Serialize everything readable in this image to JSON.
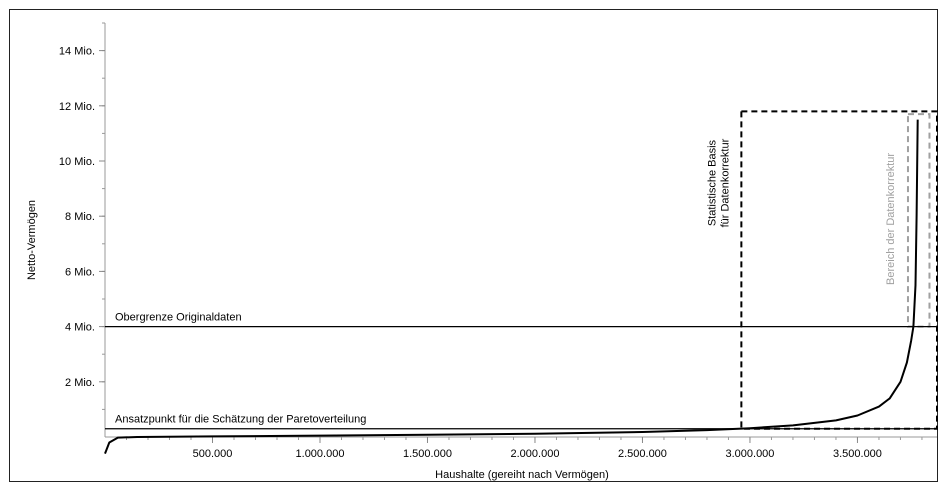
{
  "chart_data": {
    "type": "line",
    "title": "",
    "xlabel": "Haushalte (gereiht nach Vermögen)",
    "ylabel": "Netto-Vermögen",
    "xlim": [
      0,
      3870000
    ],
    "ylim": [
      0,
      15000000
    ],
    "x_ticks": [
      {
        "value": 500000,
        "label": "500.000"
      },
      {
        "value": 1000000,
        "label": "1.000.000"
      },
      {
        "value": 1500000,
        "label": "1.500.000"
      },
      {
        "value": 2000000,
        "label": "2.000.000"
      },
      {
        "value": 2500000,
        "label": "2.500.000"
      },
      {
        "value": 3000000,
        "label": "3.000.000"
      },
      {
        "value": 3500000,
        "label": "3.500.000"
      }
    ],
    "y_ticks": [
      {
        "value": 2000000,
        "label": "2 Mio."
      },
      {
        "value": 4000000,
        "label": "4 Mio."
      },
      {
        "value": 6000000,
        "label": "6 Mio."
      },
      {
        "value": 8000000,
        "label": "8 Mio."
      },
      {
        "value": 10000000,
        "label": "10 Mio."
      },
      {
        "value": 12000000,
        "label": "12 Mio."
      },
      {
        "value": 14000000,
        "label": "14 Mio."
      }
    ],
    "series": [
      {
        "x": [
          0,
          20000,
          60000,
          150000,
          500000,
          1000000,
          1500000,
          2000000,
          2500000,
          2800000,
          3000000,
          3200000,
          3400000,
          3500000,
          3600000,
          3650000,
          3700000,
          3730000,
          3750000,
          3760000,
          3770000,
          3775000,
          3780000
        ],
        "y": [
          -600000,
          -200000,
          -20000,
          0,
          20000,
          50000,
          80000,
          120000,
          180000,
          250000,
          320000,
          420000,
          600000,
          780000,
          1100000,
          1400000,
          2000000,
          2700000,
          3500000,
          4000000,
          5500000,
          8000000,
          11500000
        ]
      }
    ],
    "hlines": [
      {
        "y": 4000000,
        "label": "Obergrenze Originaldaten"
      },
      {
        "y": 300000,
        "label": "Ansatzpunkt für die Schätzung der Paretoverteilung"
      }
    ],
    "regions": [
      {
        "x0": 2960000,
        "x1": 3870000,
        "y0": 300000,
        "y1": 11800000,
        "label_lines": [
          "Statistische Basis",
          "für Datenkorrektur"
        ],
        "color": "#000000"
      },
      {
        "x0": 3735000,
        "x1": 3835000,
        "y0": 4000000,
        "y1": 11700000,
        "label_lines": [
          "Bereich der Datenkorrektur"
        ],
        "color": "#a0a0a0"
      }
    ],
    "grid": false,
    "legend": "none"
  }
}
